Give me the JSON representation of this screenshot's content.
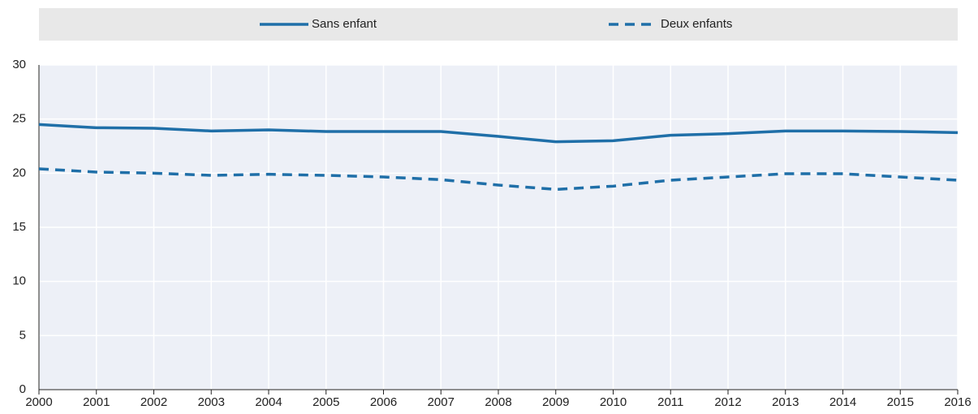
{
  "chart_data": {
    "type": "line",
    "x": [
      2000,
      2001,
      2002,
      2003,
      2004,
      2005,
      2006,
      2007,
      2008,
      2009,
      2010,
      2011,
      2012,
      2013,
      2014,
      2015,
      2016
    ],
    "xlim": [
      2000,
      2016
    ],
    "xticks": [
      2000,
      2001,
      2002,
      2003,
      2004,
      2005,
      2006,
      2007,
      2008,
      2009,
      2010,
      2011,
      2012,
      2013,
      2014,
      2015,
      2016
    ],
    "ylim": [
      0,
      30
    ],
    "yticks": [
      0,
      5,
      10,
      15,
      20,
      25,
      30
    ],
    "grid": true,
    "legend": "top",
    "series": [
      {
        "name": "Sans enfant",
        "color": "#1f6fa8",
        "dashed": false,
        "values": [
          24.5,
          24.2,
          24.15,
          23.9,
          24.0,
          23.85,
          23.85,
          23.85,
          23.4,
          22.9,
          23.0,
          23.5,
          23.65,
          23.9,
          23.9,
          23.85,
          23.75
        ]
      },
      {
        "name": "Deux enfants",
        "color": "#1f6fa8",
        "dashed": true,
        "values": [
          20.4,
          20.1,
          20.0,
          19.8,
          19.9,
          19.8,
          19.65,
          19.4,
          18.9,
          18.5,
          18.8,
          19.35,
          19.65,
          19.95,
          19.95,
          19.65,
          19.35
        ]
      }
    ]
  }
}
